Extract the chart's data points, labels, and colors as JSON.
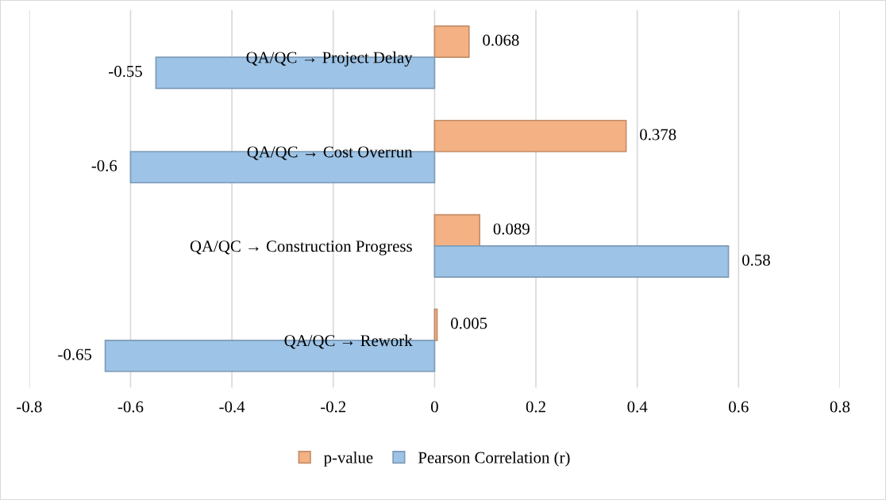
{
  "chart_data": {
    "type": "bar",
    "orientation": "horizontal",
    "categories": [
      "QA/QC → Project Delay",
      "QA/QC → Cost Overrun",
      "QA/QC → Construction Progress",
      "QA/QC → Rework"
    ],
    "series": [
      {
        "name": "p-value",
        "color": "#f4b183",
        "values": [
          0.068,
          0.378,
          0.089,
          0.005
        ]
      },
      {
        "name": "Pearson Correlation (r)",
        "color": "#9dc3e6",
        "values": [
          -0.55,
          -0.6,
          0.58,
          -0.65
        ]
      }
    ],
    "xlim": [
      -0.8,
      0.8
    ],
    "xticks": [
      -0.8,
      -0.6,
      -0.4,
      -0.2,
      0,
      0.2,
      0.4,
      0.6,
      0.8
    ],
    "grid": "x",
    "legend": "bottom",
    "data_labels": true
  }
}
